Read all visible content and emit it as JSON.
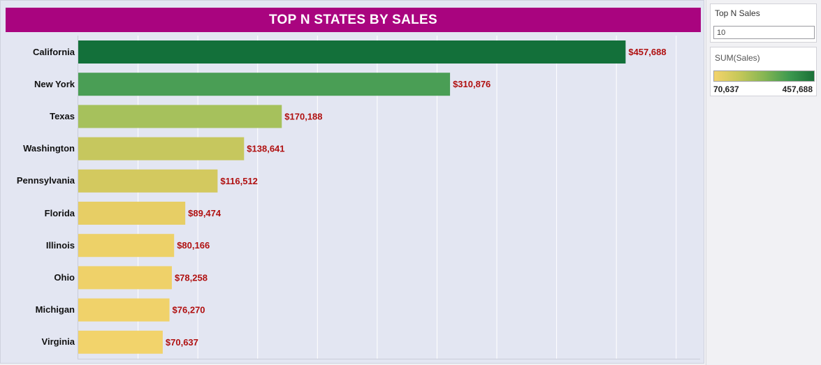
{
  "title": "TOP N STATES BY SALES",
  "parameter": {
    "label": "Top N Sales",
    "value": "10"
  },
  "legend": {
    "title": "SUM(Sales)",
    "min_label": "70,637",
    "max_label": "457,688",
    "colors": [
      "#f3d36b",
      "#1a7038"
    ]
  },
  "chart_data": {
    "type": "bar",
    "orientation": "horizontal",
    "title": "TOP N STATES BY SALES",
    "categories": [
      "California",
      "New York",
      "Texas",
      "Washington",
      "Pennsylvania",
      "Florida",
      "Illinois",
      "Ohio",
      "Michigan",
      "Virginia"
    ],
    "values": [
      457688,
      310876,
      170188,
      138641,
      116512,
      89474,
      80166,
      78258,
      76270,
      70637
    ],
    "value_labels": [
      "$457,688",
      "$310,876",
      "$170,188",
      "$138,641",
      "$116,512",
      "$89,474",
      "$80,166",
      "$78,258",
      "$76,270",
      "$70,637"
    ],
    "bar_colors": [
      "#13703a",
      "#4a9e55",
      "#a6c15c",
      "#c6c75e",
      "#d3c95f",
      "#e7ce65",
      "#edd168",
      "#efd169",
      "#f0d26a",
      "#f2d36b"
    ],
    "xlim": [
      0,
      520000
    ],
    "grid": true,
    "value_label_color": "#b01010"
  }
}
